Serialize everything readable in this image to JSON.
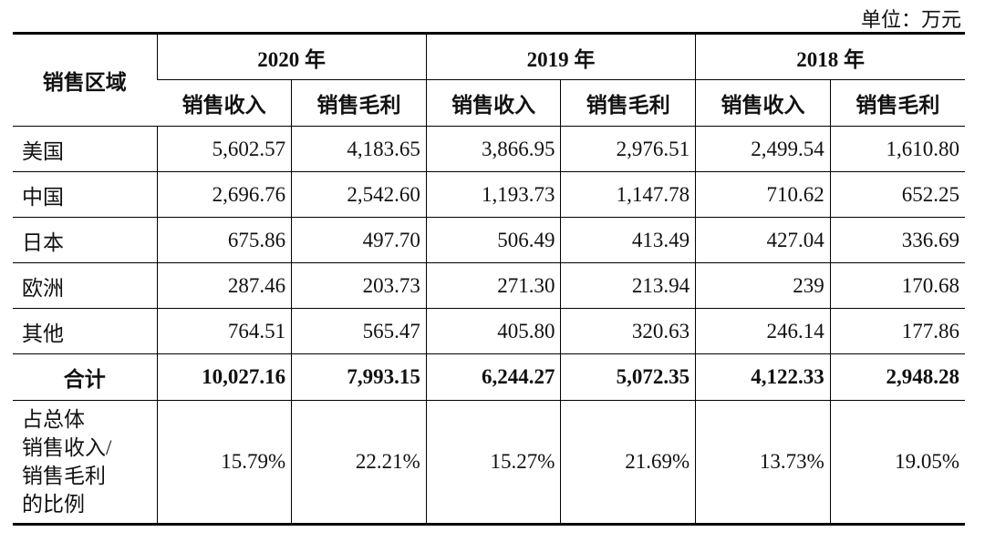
{
  "unit": "单位：万元",
  "table": {
    "header": {
      "region": "销售区域",
      "years": [
        "2020 年",
        "2019 年",
        "2018 年"
      ],
      "subheaders": [
        "销售收入",
        "销售毛利",
        "销售收入",
        "销售毛利",
        "销售收入",
        "销售毛利"
      ]
    },
    "rows": [
      {
        "label": "美国",
        "cells": [
          "5,602.57",
          "4,183.65",
          "3,866.95",
          "2,976.51",
          "2,499.54",
          "1,610.80"
        ]
      },
      {
        "label": "中国",
        "cells": [
          "2,696.76",
          "2,542.60",
          "1,193.73",
          "1,147.78",
          "710.62",
          "652.25"
        ]
      },
      {
        "label": "日本",
        "cells": [
          "675.86",
          "497.70",
          "506.49",
          "413.49",
          "427.04",
          "336.69"
        ]
      },
      {
        "label": "欧洲",
        "cells": [
          "287.46",
          "203.73",
          "271.30",
          "213.94",
          "239",
          "170.68"
        ]
      },
      {
        "label": "其他",
        "cells": [
          "764.51",
          "565.47",
          "405.80",
          "320.63",
          "246.14",
          "177.86"
        ]
      }
    ],
    "total": {
      "label": "合计",
      "cells": [
        "10,027.16",
        "7,993.15",
        "6,244.27",
        "5,072.35",
        "4,122.33",
        "2,948.28"
      ]
    },
    "ratio": {
      "label_lines": [
        "占总体",
        "销售收入/",
        "销售毛利",
        "的比例"
      ],
      "cells": [
        "15.79%",
        "22.21%",
        "15.27%",
        "21.69%",
        "13.73%",
        "19.05%"
      ]
    }
  }
}
